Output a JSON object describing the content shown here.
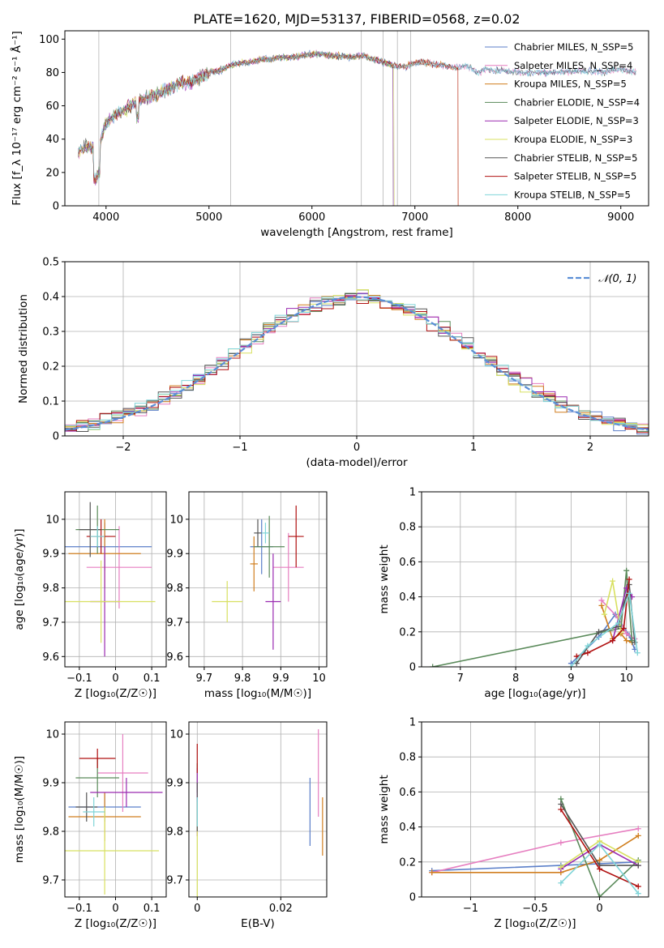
{
  "figure_title": "PLATE=1620, MJD=53137, FIBERID=0568, z=0.02",
  "chart_data": [
    {
      "id": "spectrum",
      "type": "line",
      "xlabel": "wavelength [Angstrom, rest frame]",
      "ylabel": "Flux [f_λ 10⁻¹⁷ erg cm⁻² s⁻¹ Å⁻¹]",
      "xlim": [
        3600,
        9270
      ],
      "ylim": [
        0,
        105
      ],
      "xticks": [
        4000,
        5000,
        6000,
        7000,
        8000,
        9000
      ],
      "yticks": [
        0,
        20,
        40,
        60,
        80,
        100
      ],
      "grid": false,
      "legend_position": "right",
      "x_envelope": [
        3730,
        3800,
        3900,
        3950,
        4000,
        4100,
        4200,
        4300,
        4400,
        4500,
        4600,
        4700,
        4800,
        4900,
        5000,
        5100,
        5200,
        5300,
        5400,
        5500,
        5600,
        5700,
        5800,
        5900,
        6000,
        6100,
        6200,
        6300,
        6400,
        6500,
        6600,
        6700,
        6800,
        6900,
        7000,
        7100,
        7200,
        7300,
        7400,
        7500,
        7600,
        7700,
        7800,
        7900,
        8000,
        8200,
        8400,
        8600,
        8800,
        9000,
        9150
      ],
      "y_envelope": [
        32,
        36,
        34,
        40,
        50,
        55,
        58,
        63,
        65,
        67,
        70,
        73,
        74,
        76,
        80,
        81,
        84,
        86,
        86,
        88,
        88,
        89,
        89,
        90,
        91,
        91,
        90,
        90,
        89,
        90,
        88,
        86,
        84,
        83,
        86,
        86,
        85,
        84,
        83,
        84,
        80,
        82,
        81,
        81,
        80,
        80,
        80,
        81,
        80,
        82,
        80
      ],
      "series": [
        {
          "name": "Chabrier MILES, N_SSP=5",
          "color": "#5b7fc9",
          "cutoff": null
        },
        {
          "name": "Salpeter MILES, N_SSP=4",
          "color": "#e67ec0",
          "cutoff": null
        },
        {
          "name": "Kroupa MILES, N_SSP=5",
          "color": "#d07e1e",
          "cutoff": 7420
        },
        {
          "name": "Chabrier ELODIE, N_SSP=4",
          "color": "#5a8a5a",
          "cutoff": 6790
        },
        {
          "name": "Salpeter ELODIE, N_SSP=3",
          "color": "#9a2ab0",
          "cutoff": 6790
        },
        {
          "name": "Kroupa ELODIE, N_SSP=3",
          "color": "#d8e060",
          "cutoff": 6800
        },
        {
          "name": "Chabrier STELIB, N_SSP=5",
          "color": "#555555",
          "cutoff": null
        },
        {
          "name": "Salpeter STELIB, N_SSP=5",
          "color": "#b01010",
          "cutoff": 7420
        },
        {
          "name": "Kroupa STELIB, N_SSP=5",
          "color": "#7fd4d8",
          "cutoff": null
        }
      ]
    },
    {
      "id": "residuals",
      "type": "step-histogram",
      "xlabel": "(data-model)/error",
      "ylabel": "Normed distribution",
      "xlim": [
        -2.5,
        2.5
      ],
      "ylim": [
        0,
        0.5
      ],
      "xticks": [
        -2,
        -1,
        0,
        1,
        2
      ],
      "yticks": [
        0.0,
        0.1,
        0.2,
        0.3,
        0.4,
        0.5
      ],
      "grid": true,
      "legend": {
        "label": "𝒩(0, 1)",
        "position": "top-right"
      },
      "bin_width": 0.1
    },
    {
      "id": "age_vs_Z",
      "type": "errorbar",
      "xlabel": "Z [log₁₀(Z/Z☉)]",
      "ylabel": "age  [log₁₀(age/yr)]",
      "xlim": [
        -0.14,
        0.14
      ],
      "ylim": [
        9.57,
        10.08
      ],
      "xticks": [
        -0.1,
        0.0,
        0.1
      ],
      "yticks": [
        9.6,
        9.7,
        9.8,
        9.9,
        10.0
      ],
      "grid": true,
      "points": [
        {
          "x": -0.03,
          "y": 9.92,
          "xerr": 0.13,
          "yerr": 0.07,
          "color": "#5b7fc9"
        },
        {
          "x": 0.01,
          "y": 9.86,
          "xerr": 0.09,
          "yerr": 0.12,
          "color": "#e67ec0"
        },
        {
          "x": -0.03,
          "y": 9.9,
          "xerr": 0.1,
          "yerr": 0.1,
          "color": "#d07e1e"
        },
        {
          "x": -0.05,
          "y": 9.97,
          "xerr": 0.06,
          "yerr": 0.07,
          "color": "#5a8a5a"
        },
        {
          "x": -0.03,
          "y": 9.76,
          "xerr": 0.04,
          "yerr": 0.16,
          "color": "#9a2ab0"
        },
        {
          "x": -0.04,
          "y": 9.76,
          "xerr": 0.15,
          "yerr": 0.12,
          "color": "#d8e060"
        },
        {
          "x": -0.07,
          "y": 9.97,
          "xerr": 0.03,
          "yerr": 0.08,
          "color": "#555555"
        },
        {
          "x": -0.04,
          "y": 9.95,
          "xerr": 0.04,
          "yerr": 0.05,
          "color": "#b01010"
        },
        {
          "x": -0.05,
          "y": 9.95,
          "xerr": 0.02,
          "yerr": 0.03,
          "color": "#7fd4d8"
        }
      ]
    },
    {
      "id": "age_vs_mass",
      "type": "errorbar",
      "xlabel": "mass [log₁₀(M/M☉)]",
      "ylabel": "",
      "xlim": [
        9.66,
        10.02
      ],
      "ylim": [
        9.57,
        10.08
      ],
      "xticks": [
        9.7,
        9.8,
        9.9,
        10.0
      ],
      "yticks": [
        9.6,
        9.7,
        9.8,
        9.9,
        10.0
      ],
      "grid": true,
      "points": [
        {
          "x": 9.85,
          "y": 9.92,
          "xerr": 0.03,
          "yerr": 0.08,
          "color": "#5b7fc9"
        },
        {
          "x": 9.92,
          "y": 9.86,
          "xerr": 0.04,
          "yerr": 0.1,
          "color": "#e67ec0"
        },
        {
          "x": 9.83,
          "y": 9.87,
          "xerr": 0.01,
          "yerr": 0.08,
          "color": "#d07e1e"
        },
        {
          "x": 9.87,
          "y": 9.92,
          "xerr": 0.04,
          "yerr": 0.09,
          "color": "#5a8a5a"
        },
        {
          "x": 9.88,
          "y": 9.76,
          "xerr": 0.02,
          "yerr": 0.14,
          "color": "#9a2ab0"
        },
        {
          "x": 9.76,
          "y": 9.76,
          "xerr": 0.04,
          "yerr": 0.06,
          "color": "#d8e060"
        },
        {
          "x": 9.84,
          "y": 9.96,
          "xerr": 0.01,
          "yerr": 0.04,
          "color": "#555555"
        },
        {
          "x": 9.94,
          "y": 9.95,
          "xerr": 0.02,
          "yerr": 0.09,
          "color": "#b01010"
        },
        {
          "x": 9.86,
          "y": 9.96,
          "xerr": 0.01,
          "yerr": 0.03,
          "color": "#7fd4d8"
        }
      ]
    },
    {
      "id": "mass_weight_vs_age",
      "type": "line",
      "xlabel": "age  [log₁₀(age/yr)]",
      "ylabel": "mass weight",
      "xlim": [
        6.3,
        10.4
      ],
      "ylim": [
        0,
        1
      ],
      "xticks": [
        7,
        8,
        9,
        10
      ],
      "yticks": [
        0.0,
        0.2,
        0.4,
        0.6,
        0.8,
        1.0
      ],
      "grid": true,
      "series": [
        {
          "color": "#5b7fc9",
          "x": [
            9.0,
            9.5,
            9.8,
            10.05,
            10.15
          ],
          "y": [
            0.02,
            0.17,
            0.3,
            0.18,
            0.1
          ]
        },
        {
          "color": "#e67ec0",
          "x": [
            9.55,
            9.85,
            10.0,
            10.15
          ],
          "y": [
            0.38,
            0.28,
            0.19,
            0.16
          ]
        },
        {
          "color": "#d07e1e",
          "x": [
            9.55,
            9.75,
            9.9,
            10.0,
            10.1
          ],
          "y": [
            0.35,
            0.16,
            0.19,
            0.15,
            0.14
          ]
        },
        {
          "color": "#5a8a5a",
          "x": [
            6.5,
            9.9,
            10.0,
            10.1
          ],
          "y": [
            0.0,
            0.22,
            0.55,
            0.15
          ]
        },
        {
          "color": "#9a2ab0",
          "x": [
            9.75,
            10.0,
            10.1
          ],
          "y": [
            0.15,
            0.45,
            0.4
          ]
        },
        {
          "color": "#d8e060",
          "x": [
            9.6,
            9.75,
            9.9
          ],
          "y": [
            0.3,
            0.49,
            0.2
          ]
        },
        {
          "color": "#555555",
          "x": [
            9.1,
            9.5,
            9.85,
            10.05,
            10.15
          ],
          "y": [
            0.02,
            0.2,
            0.23,
            0.47,
            0.14
          ]
        },
        {
          "color": "#b01010",
          "x": [
            9.1,
            9.3,
            9.75,
            9.95,
            10.05
          ],
          "y": [
            0.06,
            0.08,
            0.15,
            0.22,
            0.5
          ]
        },
        {
          "color": "#7fd4d8",
          "x": [
            9.0,
            9.3,
            9.85,
            10.05,
            10.2
          ],
          "y": [
            0.0,
            0.12,
            0.25,
            0.42,
            0.08
          ]
        }
      ]
    },
    {
      "id": "mass_vs_Z",
      "type": "errorbar",
      "xlabel": "Z [log₁₀(Z/Z☉)]",
      "ylabel": "mass [log₁₀(M/M☉)]",
      "xlim": [
        -0.14,
        0.14
      ],
      "ylim": [
        9.665,
        10.025
      ],
      "xticks": [
        -0.1,
        0.0,
        0.1
      ],
      "yticks": [
        9.7,
        9.8,
        9.9,
        10.0
      ],
      "grid": true,
      "points": [
        {
          "x": -0.03,
          "y": 9.85,
          "xerr": 0.1,
          "yerr": 0.03,
          "color": "#5b7fc9"
        },
        {
          "x": 0.02,
          "y": 9.92,
          "xerr": 0.07,
          "yerr": 0.08,
          "color": "#e67ec0"
        },
        {
          "x": -0.03,
          "y": 9.83,
          "xerr": 0.1,
          "yerr": 0.05,
          "color": "#d07e1e"
        },
        {
          "x": -0.05,
          "y": 9.91,
          "xerr": 0.06,
          "yerr": 0.04,
          "color": "#5a8a5a"
        },
        {
          "x": 0.03,
          "y": 9.88,
          "xerr": 0.1,
          "yerr": 0.03,
          "color": "#9a2ab0"
        },
        {
          "x": -0.03,
          "y": 9.76,
          "xerr": 0.15,
          "yerr": 0.09,
          "color": "#d8e060"
        },
        {
          "x": -0.08,
          "y": 9.85,
          "xerr": 0.03,
          "yerr": 0.03,
          "color": "#555555"
        },
        {
          "x": -0.05,
          "y": 9.95,
          "xerr": 0.05,
          "yerr": 0.02,
          "color": "#b01010"
        },
        {
          "x": -0.06,
          "y": 9.84,
          "xerr": 0.03,
          "yerr": 0.03,
          "color": "#7fd4d8"
        }
      ]
    },
    {
      "id": "mass_vs_EBV",
      "type": "errorbar",
      "xlabel": "E(B-V)",
      "ylabel": "",
      "xlim": [
        -0.002,
        0.031
      ],
      "ylim": [
        9.665,
        10.025
      ],
      "xticks": [
        0.0,
        0.02
      ],
      "yticks": [
        9.7,
        9.8,
        9.9,
        10.0
      ],
      "grid": true,
      "points": [
        {
          "x": 0.027,
          "y": 9.84,
          "xerr": 0,
          "yerr": 0.07,
          "color": "#5b7fc9"
        },
        {
          "x": 0.029,
          "y": 9.92,
          "xerr": 0,
          "yerr": 0.09,
          "color": "#e67ec0"
        },
        {
          "x": 0.03,
          "y": 9.81,
          "xerr": 0,
          "yerr": 0.06,
          "color": "#d07e1e"
        },
        {
          "x": 0.0,
          "y": 9.91,
          "xerr": 0,
          "yerr": 0.03,
          "color": "#5a8a5a"
        },
        {
          "x": 0.0,
          "y": 9.86,
          "xerr": 0,
          "yerr": 0.07,
          "color": "#9a2ab0"
        },
        {
          "x": 0.0,
          "y": 9.76,
          "xerr": 0,
          "yerr": 0.1,
          "color": "#d8e060"
        },
        {
          "x": 0.0,
          "y": 9.85,
          "xerr": 0,
          "yerr": 0.05,
          "color": "#555555"
        },
        {
          "x": 0.0,
          "y": 9.95,
          "xerr": 0,
          "yerr": 0.03,
          "color": "#b01010"
        },
        {
          "x": 0.0,
          "y": 9.84,
          "xerr": 0,
          "yerr": 0.03,
          "color": "#7fd4d8"
        }
      ]
    },
    {
      "id": "mass_weight_vs_Z",
      "type": "line",
      "xlabel": "Z [log₁₀(Z/Z☉)]",
      "ylabel": "mass weight",
      "xlim": [
        -1.38,
        0.38
      ],
      "ylim": [
        0,
        1
      ],
      "xticks": [
        -1.0,
        -0.5,
        0.0
      ],
      "yticks": [
        0.0,
        0.2,
        0.4,
        0.6,
        0.8,
        1.0
      ],
      "grid": true,
      "series": [
        {
          "color": "#5b7fc9",
          "x": [
            -1.3,
            -0.3,
            0.0,
            0.3
          ],
          "y": [
            0.15,
            0.18,
            0.19,
            0.2
          ]
        },
        {
          "color": "#e67ec0",
          "x": [
            -1.3,
            -0.3,
            0.3
          ],
          "y": [
            0.14,
            0.31,
            0.39
          ]
        },
        {
          "color": "#d07e1e",
          "x": [
            -1.3,
            -0.3,
            0.0,
            0.3
          ],
          "y": [
            0.14,
            0.14,
            0.21,
            0.35
          ]
        },
        {
          "color": "#5a8a5a",
          "x": [
            -0.3,
            0.0,
            0.3
          ],
          "y": [
            0.56,
            0.0,
            0.21
          ]
        },
        {
          "color": "#9a2ab0",
          "x": [
            -0.3,
            0.0,
            0.3
          ],
          "y": [
            0.16,
            0.3,
            0.18
          ]
        },
        {
          "color": "#d8e060",
          "x": [
            -0.3,
            0.0,
            0.3
          ],
          "y": [
            0.17,
            0.32,
            0.2
          ]
        },
        {
          "color": "#555555",
          "x": [
            -0.3,
            0.0,
            0.3
          ],
          "y": [
            0.53,
            0.18,
            0.18
          ]
        },
        {
          "color": "#b01010",
          "x": [
            -0.3,
            0.0,
            0.3
          ],
          "y": [
            0.5,
            0.16,
            0.06
          ]
        },
        {
          "color": "#7fd4d8",
          "x": [
            -0.3,
            0.0,
            0.3
          ],
          "y": [
            0.08,
            0.3,
            0.02
          ]
        }
      ]
    }
  ]
}
